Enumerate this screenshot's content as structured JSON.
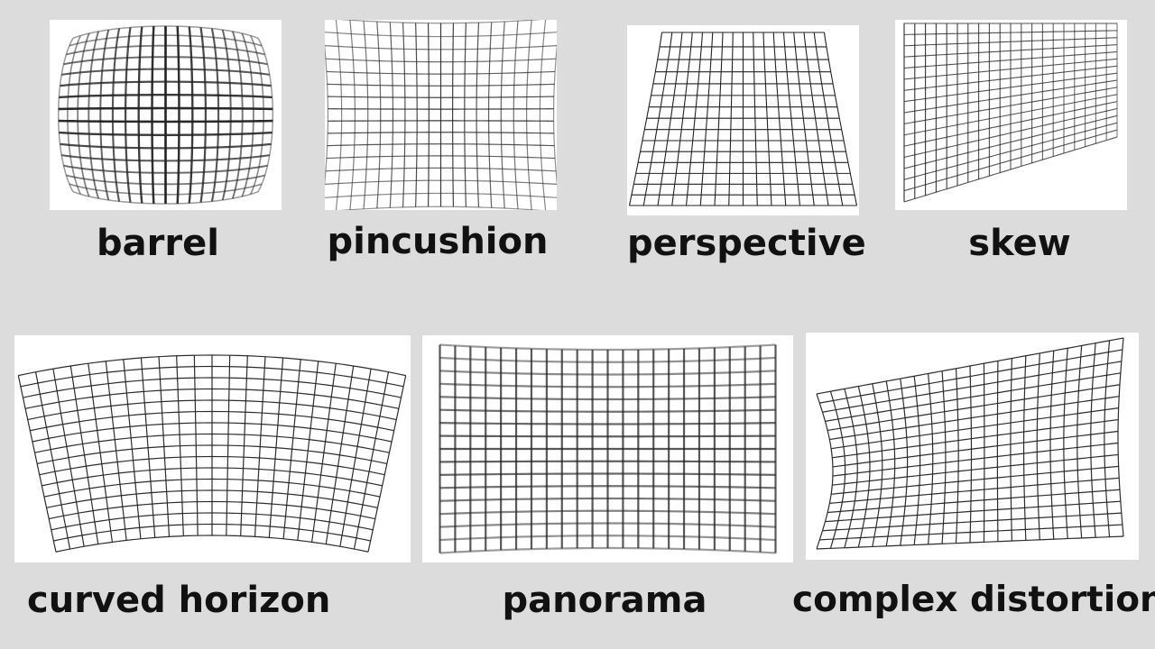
{
  "panels": [
    {
      "key": "barrel",
      "label": "barrel"
    },
    {
      "key": "pincushion",
      "label": "pincushion"
    },
    {
      "key": "perspective",
      "label": "perspective"
    },
    {
      "key": "skew",
      "label": "skew"
    },
    {
      "key": "curved",
      "label": "curved horizon"
    },
    {
      "key": "panorama",
      "label": "panorama"
    },
    {
      "key": "complex",
      "label": "complex distortion"
    }
  ],
  "colors": {
    "background": "#dcdcdc",
    "panel": "#ffffff",
    "grid": "#222222",
    "text": "#111111"
  }
}
